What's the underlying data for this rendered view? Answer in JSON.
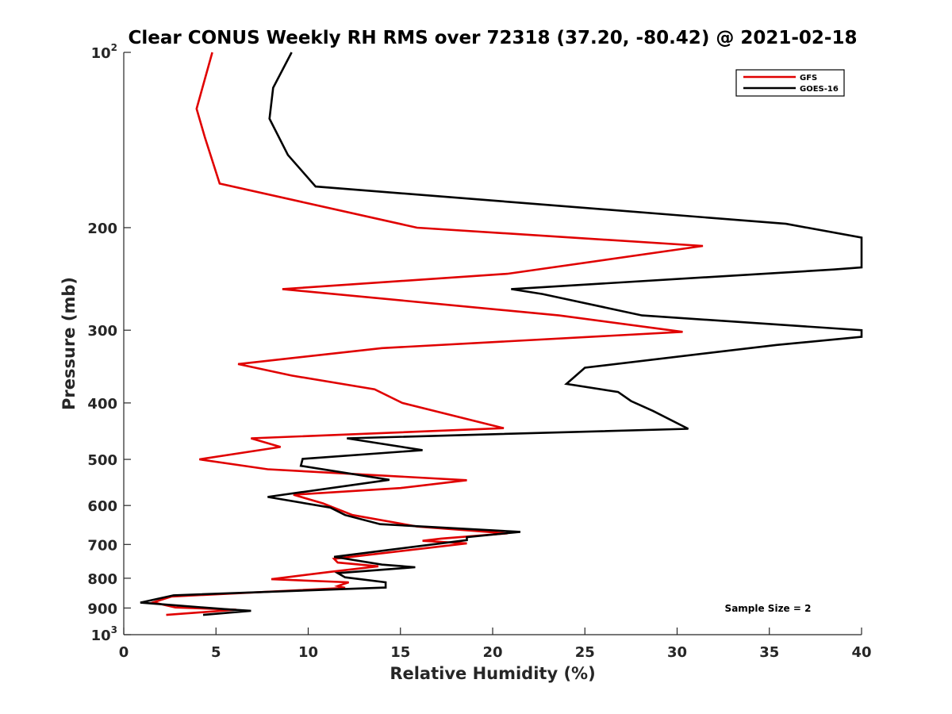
{
  "chart_data": {
    "type": "line",
    "title": "Clear CONUS Weekly RH RMS over 72318 (37.20, -80.42) @ 2021-02-18",
    "xlabel": "Relative Humidity (%)",
    "ylabel": "Pressure (mb)",
    "xlim": [
      0,
      40
    ],
    "ylim": [
      100,
      1000
    ],
    "y_scale": "log",
    "y_reversed": true,
    "x_ticks": [
      "0",
      "5",
      "10",
      "15",
      "20",
      "25",
      "30",
      "35",
      "40"
    ],
    "y_ticks": [
      {
        "value": 100,
        "base": "10",
        "sup": "2"
      },
      {
        "value": 200,
        "base": "200",
        "sup": ""
      },
      {
        "value": 300,
        "base": "300",
        "sup": ""
      },
      {
        "value": 400,
        "base": "400",
        "sup": ""
      },
      {
        "value": 500,
        "base": "500",
        "sup": ""
      },
      {
        "value": 600,
        "base": "600",
        "sup": ""
      },
      {
        "value": 700,
        "base": "700",
        "sup": ""
      },
      {
        "value": 800,
        "base": "800",
        "sup": ""
      },
      {
        "value": 900,
        "base": "900",
        "sup": ""
      },
      {
        "value": 1000,
        "base": "10",
        "sup": "3"
      }
    ],
    "grid": false,
    "legend_position": "top-right",
    "annotation": "Sample Size = 2",
    "series": [
      {
        "name": "GFS",
        "color": "#e00000",
        "points": [
          [
            4.8,
            100
          ],
          [
            3.95,
            125
          ],
          [
            4.4,
            140
          ],
          [
            5.2,
            168
          ],
          [
            15.9,
            200
          ],
          [
            31.4,
            215
          ],
          [
            20.8,
            240
          ],
          [
            8.6,
            255
          ],
          [
            23.6,
            283
          ],
          [
            30.3,
            302
          ],
          [
            14.0,
            322
          ],
          [
            6.2,
            343
          ],
          [
            9.1,
            359
          ],
          [
            13.6,
            379
          ],
          [
            15.1,
            400
          ],
          [
            20.6,
            442
          ],
          [
            6.9,
            460
          ],
          [
            8.5,
            476
          ],
          [
            4.1,
            500
          ],
          [
            7.8,
            520
          ],
          [
            18.6,
            543
          ],
          [
            15.0,
            560
          ],
          [
            9.2,
            575
          ],
          [
            10.8,
            595
          ],
          [
            12.4,
            623
          ],
          [
            15.9,
            652
          ],
          [
            20.8,
            670
          ],
          [
            17.2,
            684
          ],
          [
            16.2,
            690
          ],
          [
            18.6,
            697
          ],
          [
            11.4,
            741
          ],
          [
            11.6,
            752
          ],
          [
            13.8,
            763
          ],
          [
            11.2,
            780
          ],
          [
            8.0,
            803
          ],
          [
            12.2,
            813
          ],
          [
            11.6,
            825
          ],
          [
            12.0,
            831
          ],
          [
            2.6,
            860
          ],
          [
            1.6,
            880
          ],
          [
            2.8,
            898
          ],
          [
            6.1,
            906
          ],
          [
            2.3,
            925
          ]
        ]
      },
      {
        "name": "GOES-16",
        "color": "#000000",
        "points": [
          [
            9.1,
            100
          ],
          [
            8.1,
            115
          ],
          [
            7.9,
            130
          ],
          [
            8.9,
            150
          ],
          [
            10.4,
            170
          ],
          [
            35.9,
            197
          ],
          [
            40.0,
            208
          ],
          [
            40.0,
            234
          ],
          [
            38.5,
            236
          ],
          [
            21.0,
            255
          ],
          [
            22.7,
            260
          ],
          [
            28.1,
            283
          ],
          [
            40.0,
            300
          ],
          [
            40.0,
            308
          ],
          [
            35.4,
            318
          ],
          [
            25.0,
            348
          ],
          [
            24.0,
            371
          ],
          [
            26.8,
            383
          ],
          [
            27.5,
            397
          ],
          [
            28.7,
            413
          ],
          [
            30.6,
            443
          ],
          [
            12.1,
            460
          ],
          [
            16.2,
            482
          ],
          [
            9.7,
            499
          ],
          [
            9.6,
            513
          ],
          [
            14.4,
            542
          ],
          [
            7.8,
            580
          ],
          [
            11.2,
            605
          ],
          [
            12.0,
            623
          ],
          [
            13.9,
            646
          ],
          [
            21.5,
            666
          ],
          [
            18.6,
            680
          ],
          [
            18.6,
            688
          ],
          [
            11.4,
            735
          ],
          [
            14.0,
            758
          ],
          [
            15.8,
            766
          ],
          [
            11.6,
            784
          ],
          [
            12.0,
            797
          ],
          [
            14.2,
            813
          ],
          [
            14.2,
            830
          ],
          [
            2.7,
            856
          ],
          [
            0.9,
            881
          ],
          [
            5.7,
            905
          ],
          [
            6.9,
            910
          ],
          [
            4.3,
            925
          ]
        ]
      }
    ]
  }
}
